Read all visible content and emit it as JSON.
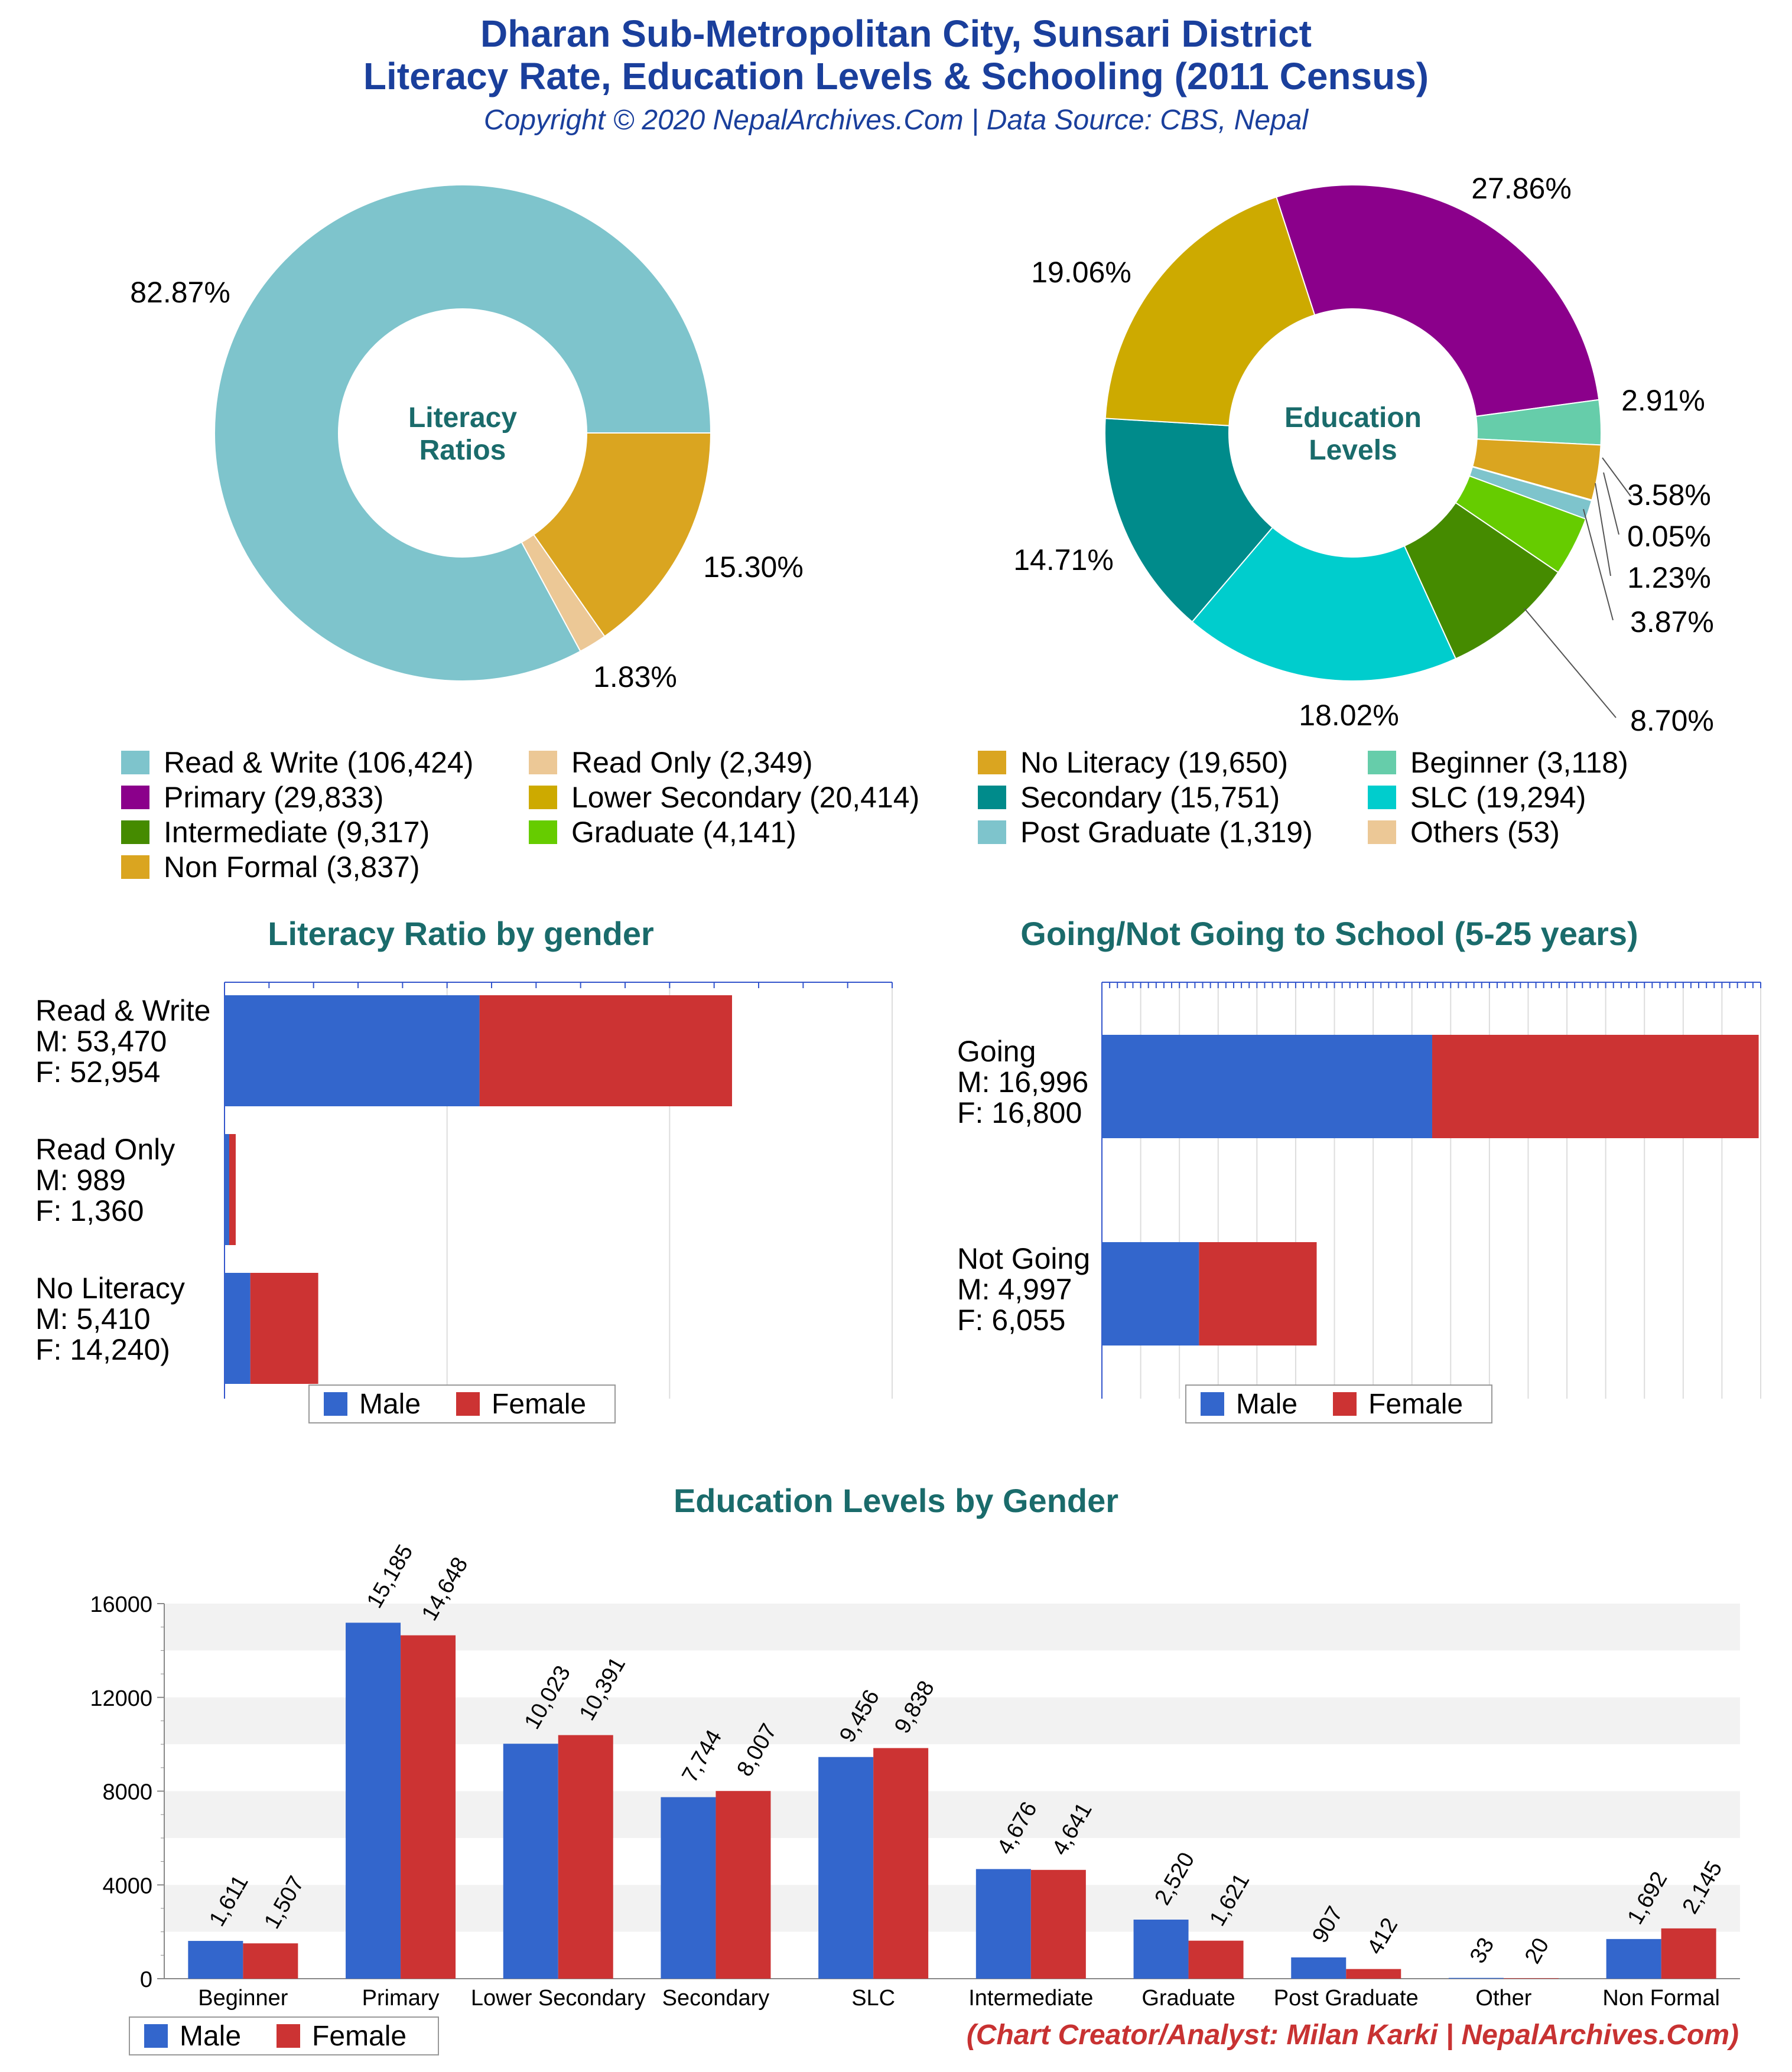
{
  "header": {
    "title_line1": "Dharan Sub-Metropolitan City, Sunsari District",
    "title_line2": "Literacy Rate, Education Levels & Schooling (2011 Census)",
    "copyright": "Copyright © 2020 NepalArchives.Com | Data Source: CBS, Nepal"
  },
  "donut1": {
    "center_line1": "Literacy",
    "center_line2": "Ratios",
    "slices": [
      {
        "label": "Read & Write",
        "value": 106424,
        "pct": "82.87%",
        "color": "#7ec4cc"
      },
      {
        "label": "No Literacy",
        "value": 19650,
        "pct": "15.30%",
        "color": "#daa520"
      },
      {
        "label": "Read Only",
        "value": 2349,
        "pct": "1.83%",
        "color": "#ecc896"
      }
    ]
  },
  "donut2": {
    "center_line1": "Education",
    "center_line2": "Levels",
    "slices": [
      {
        "label": "Primary",
        "value": 29833,
        "pct": "27.86%",
        "color": "#8b008b"
      },
      {
        "label": "Beginner",
        "value": 3118,
        "pct": "2.91%",
        "color": "#66cdaa"
      },
      {
        "label": "Non Formal",
        "value": 3837,
        "pct": "3.58%",
        "color": "#daa520"
      },
      {
        "label": "Others",
        "value": 53,
        "pct": "0.05%",
        "color": "#ecc896"
      },
      {
        "label": "Post Graduate",
        "value": 1319,
        "pct": "1.23%",
        "color": "#7ec4cc"
      },
      {
        "label": "Graduate",
        "value": 4141,
        "pct": "3.87%",
        "color": "#66cc00"
      },
      {
        "label": "Intermediate",
        "value": 9317,
        "pct": "8.70%",
        "color": "#458b00"
      },
      {
        "label": "SLC",
        "value": 19294,
        "pct": "18.02%",
        "color": "#00cdcd"
      },
      {
        "label": "Secondary",
        "value": 15751,
        "pct": "14.71%",
        "color": "#008b8b"
      },
      {
        "label": "Lower Secondary",
        "value": 20414,
        "pct": "19.06%",
        "color": "#cdaa00"
      }
    ]
  },
  "legend": [
    {
      "text": "Read & Write (106,424)",
      "color": "#7ec4cc"
    },
    {
      "text": "Read Only (2,349)",
      "color": "#ecc896"
    },
    {
      "text": "No Literacy (19,650)",
      "color": "#daa520"
    },
    {
      "text": "Beginner (3,118)",
      "color": "#66cdaa"
    },
    {
      "text": "Primary (29,833)",
      "color": "#8b008b"
    },
    {
      "text": "Lower Secondary (20,414)",
      "color": "#cdaa00"
    },
    {
      "text": "Secondary (15,751)",
      "color": "#008b8b"
    },
    {
      "text": "SLC (19,294)",
      "color": "#00cdcd"
    },
    {
      "text": "Intermediate (9,317)",
      "color": "#458b00"
    },
    {
      "text": "Graduate (4,141)",
      "color": "#66cc00"
    },
    {
      "text": "Post Graduate (1,319)",
      "color": "#7ec4cc"
    },
    {
      "text": "Others (53)",
      "color": "#ecc896"
    },
    {
      "text": "Non Formal (3,837)",
      "color": "#daa520"
    }
  ],
  "literacy_gender": {
    "title": "Literacy Ratio by gender",
    "bars": [
      {
        "label": "Read & Write",
        "m_text": "M: 53,470",
        "f_text": "F: 52,954",
        "male": 53470,
        "female": 52954
      },
      {
        "label": "Read Only",
        "m_text": "M: 989",
        "f_text": "F: 1,360",
        "male": 989,
        "female": 1360
      },
      {
        "label": "No Literacy",
        "m_text": "M: 5,410",
        "f_text": "F: 14,240)",
        "male": 5410,
        "female": 14240
      }
    ],
    "legend_male": "Male",
    "legend_female": "Female"
  },
  "schooling": {
    "title": "Going/Not Going to School (5-25 years)",
    "bars": [
      {
        "label": "Going",
        "m_text": "M: 16,996",
        "f_text": "F: 16,800",
        "male": 16996,
        "female": 16800
      },
      {
        "label": "Not Going",
        "m_text": "M: 4,997",
        "f_text": "F: 6,055",
        "male": 4997,
        "female": 6055
      }
    ],
    "legend_male": "Male",
    "legend_female": "Female"
  },
  "edu_gender": {
    "title": "Education Levels by Gender",
    "legend_male": "Male",
    "legend_female": "Female"
  },
  "colors": {
    "male": "#3366cc",
    "female": "#cc3333"
  },
  "footer": "(Chart Creator/Analyst: Milan Karki | NepalArchives.Com)",
  "chart_data": [
    {
      "type": "pie",
      "title": "Literacy Ratios",
      "categories": [
        "Read & Write",
        "Read Only",
        "No Literacy"
      ],
      "values": [
        106424,
        2349,
        19650
      ]
    },
    {
      "type": "pie",
      "title": "Education Levels",
      "categories": [
        "Beginner",
        "Primary",
        "Lower Secondary",
        "Secondary",
        "SLC",
        "Intermediate",
        "Graduate",
        "Post Graduate",
        "Others",
        "Non Formal"
      ],
      "values": [
        3118,
        29833,
        20414,
        15751,
        19294,
        9317,
        4141,
        1319,
        53,
        3837
      ]
    },
    {
      "type": "bar",
      "title": "Literacy Ratio by gender",
      "categories": [
        "Read & Write",
        "Read Only",
        "No Literacy"
      ],
      "series": [
        {
          "name": "Male",
          "values": [
            53470,
            989,
            5410
          ]
        },
        {
          "name": "Female",
          "values": [
            52954,
            1360,
            14240
          ]
        }
      ]
    },
    {
      "type": "bar",
      "title": "Going/Not Going to School (5-25 years)",
      "categories": [
        "Going",
        "Not Going"
      ],
      "series": [
        {
          "name": "Male",
          "values": [
            16996,
            4997
          ]
        },
        {
          "name": "Female",
          "values": [
            16800,
            6055
          ]
        }
      ]
    },
    {
      "type": "bar",
      "title": "Education Levels by Gender",
      "categories": [
        "Beginner",
        "Primary",
        "Lower Secondary",
        "Secondary",
        "SLC",
        "Intermediate",
        "Graduate",
        "Post Graduate",
        "Other",
        "Non Formal"
      ],
      "series": [
        {
          "name": "Male",
          "values": [
            1611,
            15185,
            10023,
            7744,
            9456,
            4676,
            2520,
            907,
            33,
            1692
          ],
          "labels": [
            "1,611",
            "15,185",
            "10,023",
            "7,744",
            "9,456",
            "4,676",
            "2,520",
            "907",
            "33",
            "1,692"
          ]
        },
        {
          "name": "Female",
          "values": [
            1507,
            14648,
            10391,
            8007,
            9838,
            4641,
            1621,
            412,
            20,
            2145
          ],
          "labels": [
            "1,507",
            "14,648",
            "10,391",
            "8,007",
            "9,838",
            "4,641",
            "1,621",
            "412",
            "20",
            "2,145"
          ]
        }
      ],
      "ylim": [
        0,
        16000
      ],
      "yticks": [
        "0",
        "4000",
        "8000",
        "12000",
        "16000"
      ]
    }
  ]
}
